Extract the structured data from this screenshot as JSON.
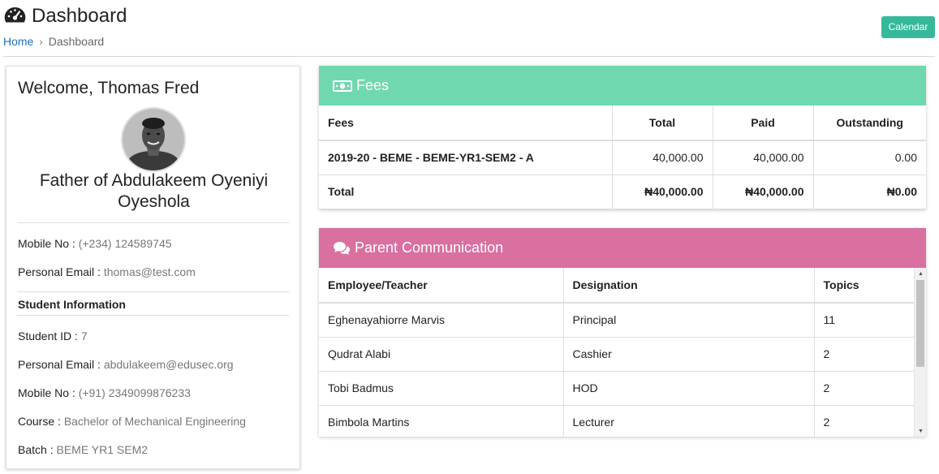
{
  "header": {
    "title": "Dashboard",
    "title_icon": "dashboard-gauge-icon",
    "breadcrumb": {
      "home": "Home",
      "separator": "›",
      "current": "Dashboard"
    },
    "calendar_label": "Calendar",
    "calendar_color": "#35b99a"
  },
  "profile": {
    "welcome": "Welcome, Thomas Fred",
    "avatar_icon": "user-photo",
    "parent_of": "Father of Abdulakeem Oyeniyi Oyeshola",
    "mobile_label": "Mobile No :",
    "mobile_value": "(+234) 124589745",
    "email_label": "Personal Email :",
    "email_value": "thomas@test.com",
    "student_section": "Student Information",
    "student_id_label": "Student ID :",
    "student_id_value": "7",
    "student_email_label": "Personal Email :",
    "student_email_value": "abdulakeem@edusec.org",
    "student_mobile_label": "Mobile No :",
    "student_mobile_value": "(+91) 2349099876233",
    "course_label": "Course :",
    "course_value": "Bachelor of Mechanical Engineering",
    "batch_label": "Batch :",
    "batch_value": "BEME YR1 SEM2"
  },
  "fees": {
    "title": "Fees",
    "icon": "money-bill-icon",
    "color": "#6fd8ae",
    "columns": [
      "Fees",
      "Total",
      "Paid",
      "Outstanding"
    ],
    "row": {
      "name": "2019-20 - BEME - BEME-YR1-SEM2 - A",
      "total": "40,000.00",
      "paid": "40,000.00",
      "outstanding": "0.00"
    },
    "total_row": {
      "label": "Total",
      "total": "₦40,000.00",
      "paid": "₦40,000.00",
      "outstanding": "₦0.00"
    }
  },
  "communication": {
    "title": "Parent Communication",
    "icon": "chat-bubbles-icon",
    "color": "#d9709f",
    "columns": [
      "Employee/Teacher",
      "Designation",
      "Topics"
    ],
    "rows": [
      {
        "name": "Eghenayahiorre Marvis",
        "designation": "Principal",
        "topics": "11"
      },
      {
        "name": "Qudrat Alabi",
        "designation": "Cashier",
        "topics": "2"
      },
      {
        "name": "Tobi Badmus",
        "designation": "HOD",
        "topics": "2"
      },
      {
        "name": "Bimbola Martins",
        "designation": "Lecturer",
        "topics": "2"
      }
    ]
  }
}
